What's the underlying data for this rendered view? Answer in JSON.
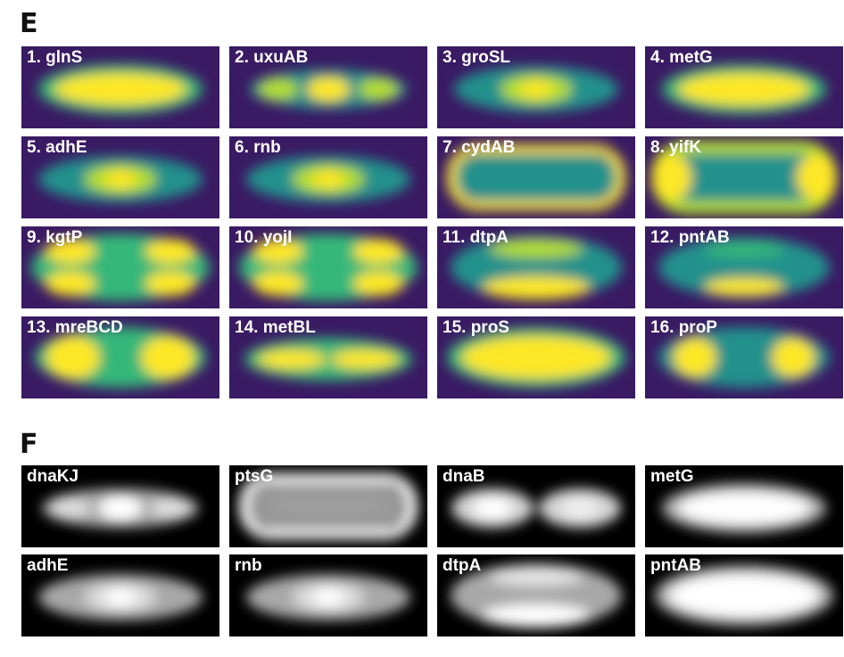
{
  "panel_e": {
    "letter": "E",
    "style": "viridis",
    "tiles": [
      {
        "label": "1. glnS",
        "pattern": "uniform-elongated"
      },
      {
        "label": "2. uxuAB",
        "pattern": "three-spots-row"
      },
      {
        "label": "3. groSL",
        "pattern": "center-spot"
      },
      {
        "label": "4. metG",
        "pattern": "uniform-elongated"
      },
      {
        "label": "5. adhE",
        "pattern": "center-spot"
      },
      {
        "label": "6. rnb",
        "pattern": "center-spot"
      },
      {
        "label": "7. cydAB",
        "pattern": "membrane-ring"
      },
      {
        "label": "8. yifK",
        "pattern": "ring-thick-poles"
      },
      {
        "label": "9. kgtP",
        "pattern": "four-quadrants"
      },
      {
        "label": "10. yojI",
        "pattern": "four-quadrants"
      },
      {
        "label": "11. dtpA",
        "pattern": "top-bottom-bands"
      },
      {
        "label": "12. pntAB",
        "pattern": "top-bottom-weak"
      },
      {
        "label": "13. mreBCD",
        "pattern": "two-spots"
      },
      {
        "label": "14. metBL",
        "pattern": "double-band"
      },
      {
        "label": "15. proS",
        "pattern": "uniform-wide"
      },
      {
        "label": "16. proP",
        "pattern": "two-spots-sharp"
      }
    ]
  },
  "panel_f": {
    "letter": "F",
    "style": "grayscale",
    "tiles": [
      {
        "label": "dnaKJ",
        "pattern": "three-spots-row"
      },
      {
        "label": "ptsG",
        "pattern": "membrane-ring"
      },
      {
        "label": "dnaB",
        "pattern": "split-halves"
      },
      {
        "label": "metG",
        "pattern": "uniform-elongated"
      },
      {
        "label": "adhE",
        "pattern": "center-spot"
      },
      {
        "label": "rnb",
        "pattern": "center-spot"
      },
      {
        "label": "dtpA",
        "pattern": "top-bottom-bands"
      },
      {
        "label": "pntAB",
        "pattern": "uniform-wide"
      }
    ]
  },
  "colors": {
    "viridis_low": "#3a1a63",
    "viridis_mid": "#21918c",
    "viridis_high": "#fde725",
    "gray_low": "#000000",
    "gray_high": "#ffffff"
  }
}
